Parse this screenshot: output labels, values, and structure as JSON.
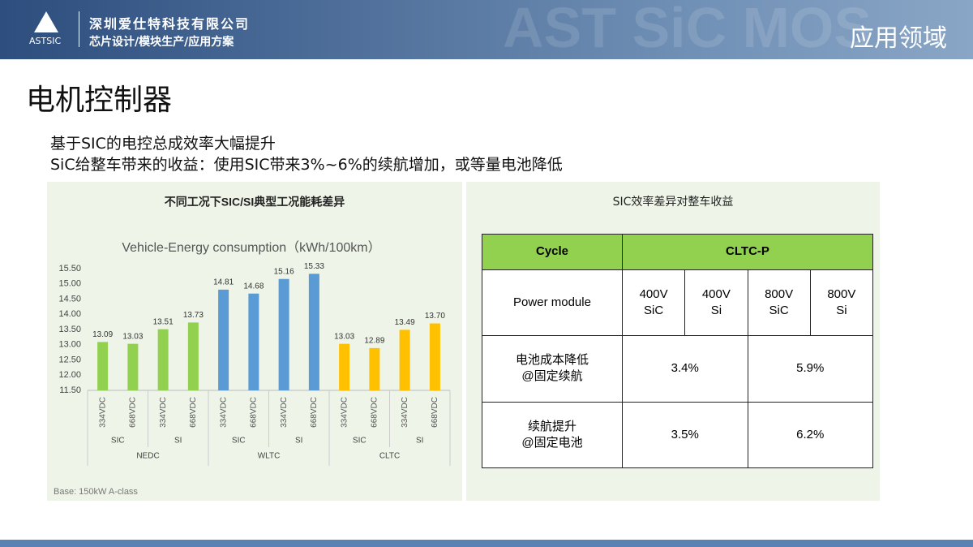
{
  "header": {
    "logo": "ASTSIC",
    "company": "深圳爱仕特科技有限公司",
    "tagline": "芯片设计/模块生产/应用方案",
    "watermark": "AST SiC MOS",
    "section": "应用领域"
  },
  "title": "电机控制器",
  "points": [
    "基于SIC的电控总成效率大幅提升",
    "SiC给整车带来的收益：使用SIC带来3%~6%的续航增加，或等量电池降低"
  ],
  "chart_data": {
    "type": "bar",
    "title": "不同工况下SIC/SI典型工况能耗差异",
    "subtitle": "Vehicle-Energy consumption（kWh/100km）",
    "note": "Base: 150kW A-class",
    "categories": [
      "334VDC",
      "668VDC",
      "334VDC",
      "668VDC",
      "334VDC",
      "668VDC",
      "334VDC",
      "668VDC",
      "334VDC",
      "668VDC",
      "334VDC",
      "668VDC"
    ],
    "subgroups": [
      "SIC",
      "SI",
      "SIC",
      "SI",
      "SIC",
      "SI"
    ],
    "groups": [
      "NEDC",
      "WLTC",
      "CLTC"
    ],
    "values": [
      13.09,
      13.03,
      13.51,
      13.73,
      14.81,
      14.68,
      15.16,
      15.33,
      13.03,
      12.89,
      13.49,
      13.7
    ],
    "value_labels": [
      "13.09",
      "13.03",
      "13.51",
      "13.73",
      "14.81",
      "14.68",
      "15.16",
      "15.33",
      "13.03",
      "12.89",
      "13.49",
      "13.70"
    ],
    "group_colors": [
      "#92d050",
      "#5b9bd5",
      "#ffc000"
    ],
    "ylim": [
      11.5,
      15.5
    ],
    "yticks": [
      {
        "value": 11.5,
        "label": "11.50"
      },
      {
        "value": 12,
        "label": "12.00"
      },
      {
        "value": 12.5,
        "label": "12.50"
      },
      {
        "value": 13,
        "label": "13.00"
      },
      {
        "value": 13.5,
        "label": "13.50"
      },
      {
        "value": 14,
        "label": "14.00"
      },
      {
        "value": 14.5,
        "label": "14.50"
      },
      {
        "value": 15,
        "label": "15.00"
      },
      {
        "value": 15.5,
        "label": "15.50"
      }
    ],
    "grid": false
  },
  "table": {
    "title": "SIC效率差异对整车收益",
    "header": [
      "Cycle",
      "CLTC-P"
    ],
    "rows": [
      [
        "Power module",
        "400V\nSiC",
        "400V\nSi",
        "800V\nSiC",
        "800V\nSi"
      ],
      [
        "电池成本降低\n@固定续航",
        "3.4%",
        "5.9%"
      ],
      [
        "续航提升\n@固定电池",
        "3.5%",
        "6.2%"
      ]
    ]
  }
}
